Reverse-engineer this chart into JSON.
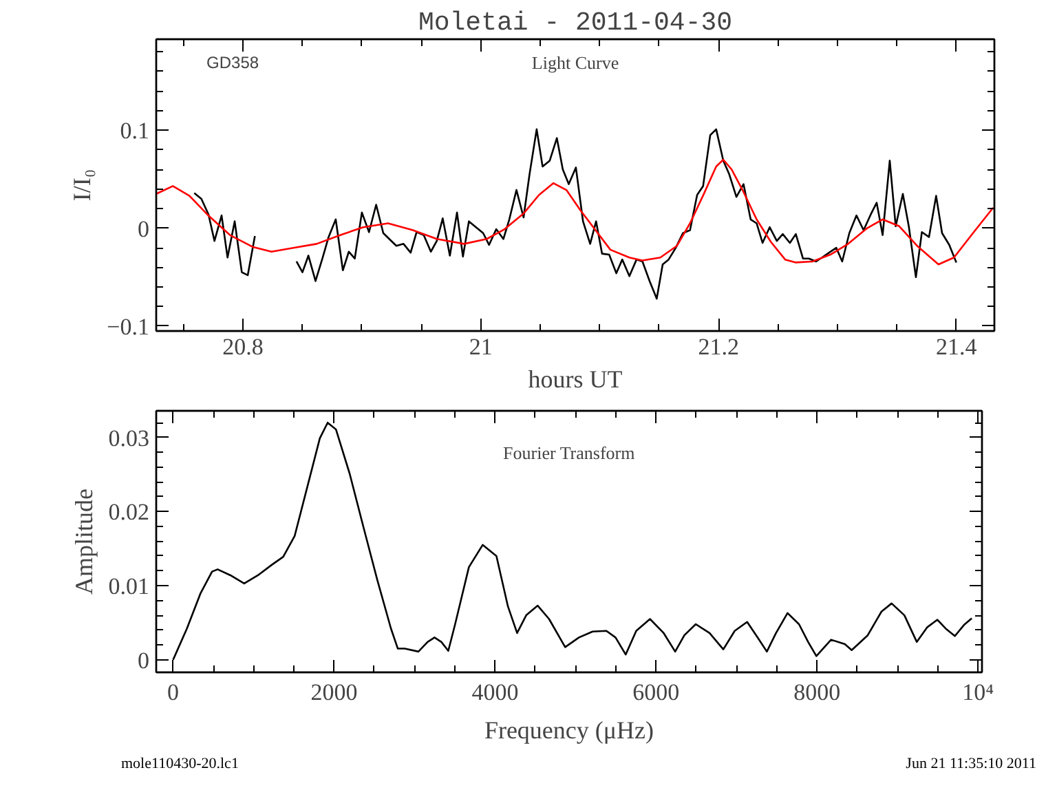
{
  "chart_data": [
    {
      "type": "line",
      "title": "Moletai - 2011-04-30",
      "xlabel": "hours UT",
      "ylabel": "I/I₀",
      "annotations": [
        "GD358",
        "Light Curve"
      ],
      "xlim": [
        20.727,
        21.432
      ],
      "ylim": [
        -0.105,
        0.193
      ],
      "xticks": [
        {
          "value": 20.75,
          "label": null
        },
        {
          "value": 20.8,
          "label": "20.8"
        },
        {
          "value": 20.85,
          "label": null
        },
        {
          "value": 20.9,
          "label": null
        },
        {
          "value": 20.95,
          "label": null
        },
        21,
        {
          "value": 21.05,
          "label": null
        },
        {
          "value": 21.1,
          "label": null
        },
        {
          "value": 21.15,
          "label": null
        },
        {
          "value": 21.2,
          "label": "21.2"
        },
        {
          "value": 21.25,
          "label": null
        },
        {
          "value": 21.3,
          "label": null
        },
        {
          "value": 21.35,
          "label": null
        },
        {
          "value": 21.4,
          "label": "21.4"
        }
      ],
      "yticks": [
        {
          "value": -0.1,
          "label": "−0.1"
        },
        {
          "value": -0.08,
          "label": null
        },
        {
          "value": -0.06,
          "label": null
        },
        {
          "value": -0.04,
          "label": null
        },
        {
          "value": -0.02,
          "label": null
        },
        0,
        {
          "value": 0.02,
          "label": null
        },
        {
          "value": 0.04,
          "label": null
        },
        {
          "value": 0.06,
          "label": null
        },
        {
          "value": 0.08,
          "label": null
        },
        {
          "value": 0.1,
          "label": "0.1"
        },
        {
          "value": 0.12,
          "label": null
        },
        {
          "value": 0.14,
          "label": null
        },
        {
          "value": 0.16,
          "label": null
        },
        {
          "value": 0.18,
          "label": null
        }
      ],
      "grid": false,
      "series": [
        {
          "color": "#000000",
          "x": [
            20.759,
            20.765,
            20.771,
            20.776,
            20.782,
            20.787,
            20.793,
            20.799,
            20.804,
            20.81,
            20.827,
            20.845,
            20.85,
            20.855,
            20.861,
            20.867,
            20.872,
            20.878,
            20.884,
            20.889,
            20.894,
            20.9,
            20.906,
            20.912,
            20.918,
            20.923,
            20.929,
            20.935,
            20.941,
            20.946,
            20.952,
            20.958,
            20.963,
            20.968,
            20.974,
            20.98,
            20.985,
            20.99,
            20.996,
            21.002,
            21.007,
            21.013,
            21.019,
            21.024,
            21.03,
            21.036,
            21.041,
            21.047,
            21.052,
            21.058,
            21.064,
            21.069,
            21.074,
            21.08,
            21.086,
            21.092,
            21.097,
            21.102,
            21.108,
            21.114,
            21.119,
            21.125,
            21.131,
            21.136,
            21.142,
            21.148,
            21.153,
            21.158,
            21.164,
            21.17,
            21.176,
            21.182,
            21.187,
            21.193,
            21.198,
            21.204,
            21.209,
            21.215,
            21.221,
            21.227,
            21.232,
            21.237,
            21.243,
            21.249,
            21.254,
            21.26,
            21.265,
            21.271,
            21.276,
            21.282,
            21.287,
            21.293,
            21.299,
            21.304,
            21.31,
            21.316,
            21.322,
            21.328,
            21.333,
            21.338,
            21.344,
            21.349,
            21.355,
            21.36,
            21.366,
            21.371,
            21.377,
            21.383,
            21.388,
            21.394,
            21.4
          ],
          "values": [
            0.036,
            0.03,
            0.014,
            -0.013,
            0.013,
            -0.03,
            0.007,
            -0.045,
            -0.048,
            -0.008,
            null,
            -0.034,
            -0.045,
            -0.028,
            -0.054,
            -0.03,
            -0.009,
            0.009,
            -0.043,
            -0.024,
            -0.031,
            0.016,
            -0.004,
            0.024,
            -0.005,
            -0.011,
            -0.018,
            -0.016,
            -0.025,
            -0.004,
            -0.007,
            -0.024,
            -0.013,
            0.01,
            -0.028,
            0.016,
            -0.029,
            0.007,
            0.001,
            -0.005,
            -0.017,
            -0.001,
            -0.011,
            0.009,
            0.039,
            0.011,
            0.055,
            0.101,
            0.063,
            0.069,
            0.092,
            0.06,
            0.045,
            0.062,
            0.007,
            -0.016,
            0.007,
            -0.026,
            -0.027,
            -0.046,
            -0.032,
            -0.049,
            -0.032,
            -0.034,
            -0.054,
            -0.072,
            -0.037,
            -0.032,
            -0.02,
            -0.005,
            -0.002,
            0.034,
            0.043,
            0.095,
            0.101,
            0.069,
            0.055,
            0.032,
            0.045,
            0.009,
            0.005,
            -0.015,
            0.001,
            -0.013,
            -0.006,
            -0.015,
            -0.006,
            -0.031,
            -0.031,
            -0.034,
            -0.03,
            -0.025,
            -0.02,
            -0.034,
            -0.005,
            0.013,
            -0.002,
            0.014,
            0.026,
            -0.007,
            0.069,
            0.002,
            0.035,
            0.002,
            -0.05,
            -0.004,
            -0.009,
            0.033,
            -0.005,
            -0.017,
            -0.035
          ]
        },
        {
          "color": "#ff0000",
          "x": [
            20.727,
            20.741,
            20.755,
            20.77,
            20.789,
            20.808,
            20.824,
            20.843,
            20.862,
            20.882,
            20.901,
            20.922,
            20.943,
            20.963,
            20.986,
            21.005,
            21.02,
            21.036,
            21.049,
            21.061,
            21.072,
            21.084,
            21.094,
            21.109,
            21.125,
            21.136,
            21.151,
            21.165,
            21.176,
            21.188,
            21.198,
            21.204,
            21.211,
            21.221,
            21.232,
            21.244,
            21.256,
            21.265,
            21.279,
            21.294,
            21.309,
            21.325,
            21.338,
            21.352,
            21.367,
            21.385,
            21.398,
            21.414,
            21.431
          ],
          "values": [
            0.035,
            0.043,
            0.033,
            0.014,
            -0.007,
            -0.019,
            -0.024,
            -0.02,
            -0.016,
            -0.007,
            0.001,
            0.005,
            -0.002,
            -0.011,
            -0.016,
            -0.011,
            -0.001,
            0.015,
            0.034,
            0.046,
            0.039,
            0.018,
            0.002,
            -0.022,
            -0.03,
            -0.033,
            -0.03,
            -0.018,
            0.005,
            0.036,
            0.063,
            0.07,
            0.06,
            0.037,
            0.009,
            -0.014,
            -0.032,
            -0.035,
            -0.034,
            -0.027,
            -0.016,
            0.0,
            0.009,
            0.002,
            -0.018,
            -0.037,
            -0.03,
            -0.005,
            0.021
          ]
        }
      ]
    },
    {
      "type": "line",
      "xlabel": "Frequency (μHz)",
      "ylabel": "Amplitude",
      "annotations": [
        "Fourier Transform",
        "mole110430-20.lc1",
        "Jun 21 11:35:10 2011"
      ],
      "xlim": [
        -210,
        10050
      ],
      "ylim": [
        -0.0017,
        0.0336
      ],
      "xticks": [
        0,
        {
          "value": 500,
          "label": null
        },
        {
          "value": 1000,
          "label": null
        },
        {
          "value": 1500,
          "label": null
        },
        2000,
        {
          "value": 2500,
          "label": null
        },
        {
          "value": 3000,
          "label": null
        },
        {
          "value": 3500,
          "label": null
        },
        4000,
        {
          "value": 4500,
          "label": null
        },
        {
          "value": 5000,
          "label": null
        },
        {
          "value": 5500,
          "label": null
        },
        6000,
        {
          "value": 6500,
          "label": null
        },
        {
          "value": 7000,
          "label": null
        },
        {
          "value": 7500,
          "label": null
        },
        8000,
        {
          "value": 8500,
          "label": null
        },
        {
          "value": 9000,
          "label": null
        },
        {
          "value": 9500,
          "label": null
        },
        {
          "value": 10000,
          "label": "10⁴"
        }
      ],
      "yticks": [
        0,
        {
          "value": 0.002,
          "label": null
        },
        {
          "value": 0.004,
          "label": null
        },
        {
          "value": 0.006,
          "label": null
        },
        {
          "value": 0.008,
          "label": null
        },
        0.01,
        {
          "value": 0.012,
          "label": null
        },
        {
          "value": 0.014,
          "label": null
        },
        {
          "value": 0.016,
          "label": null
        },
        {
          "value": 0.018,
          "label": null
        },
        0.02,
        {
          "value": 0.022,
          "label": null
        },
        {
          "value": 0.024,
          "label": null
        },
        {
          "value": 0.026,
          "label": null
        },
        {
          "value": 0.028,
          "label": null
        },
        0.03,
        {
          "value": 0.032,
          "label": null
        }
      ],
      "grid": false,
      "series": [
        {
          "color": "#000000",
          "x": [
            0,
            171,
            342,
            484,
            553,
            712,
            883,
            1054,
            1225,
            1368,
            1510,
            1681,
            1823,
            1920,
            2023,
            2194,
            2365,
            2536,
            2707,
            2792,
            2878,
            3048,
            3162,
            3248,
            3333,
            3419,
            3504,
            3675,
            3846,
            4017,
            4160,
            4274,
            4387,
            4530,
            4671,
            4871,
            5042,
            5212,
            5383,
            5497,
            5623,
            5754,
            5925,
            6095,
            6238,
            6352,
            6494,
            6665,
            6836,
            6978,
            7132,
            7263,
            7377,
            7491,
            7634,
            7776,
            7890,
            7992,
            8175,
            8346,
            8431,
            8630,
            8801,
            8927,
            9086,
            9240,
            9371,
            9496,
            9599,
            9713,
            9827,
            9923
          ],
          "values": [
            0,
            0.0042,
            0.009,
            0.0119,
            0.0122,
            0.0114,
            0.0103,
            0.0114,
            0.0128,
            0.0139,
            0.0167,
            0.0239,
            0.0299,
            0.032,
            0.0311,
            0.0251,
            0.0179,
            0.0108,
            0.0042,
            0.0015,
            0.0015,
            0.0011,
            0.0024,
            0.003,
            0.0024,
            0.0012,
            0.0048,
            0.0125,
            0.0155,
            0.014,
            0.0072,
            0.0036,
            0.006,
            0.0073,
            0.0055,
            0.0017,
            0.003,
            0.0038,
            0.0039,
            0.003,
            0.0007,
            0.0039,
            0.0055,
            0.0036,
            0.0011,
            0.0033,
            0.0048,
            0.0036,
            0.0014,
            0.0039,
            0.0051,
            0.003,
            0.0011,
            0.0036,
            0.0063,
            0.0048,
            0.0024,
            0.0005,
            0.0027,
            0.0021,
            0.0013,
            0.0033,
            0.0065,
            0.0076,
            0.006,
            0.0024,
            0.0044,
            0.0054,
            0.0042,
            0.0032,
            0.0047,
            0.0056
          ]
        }
      ]
    }
  ]
}
